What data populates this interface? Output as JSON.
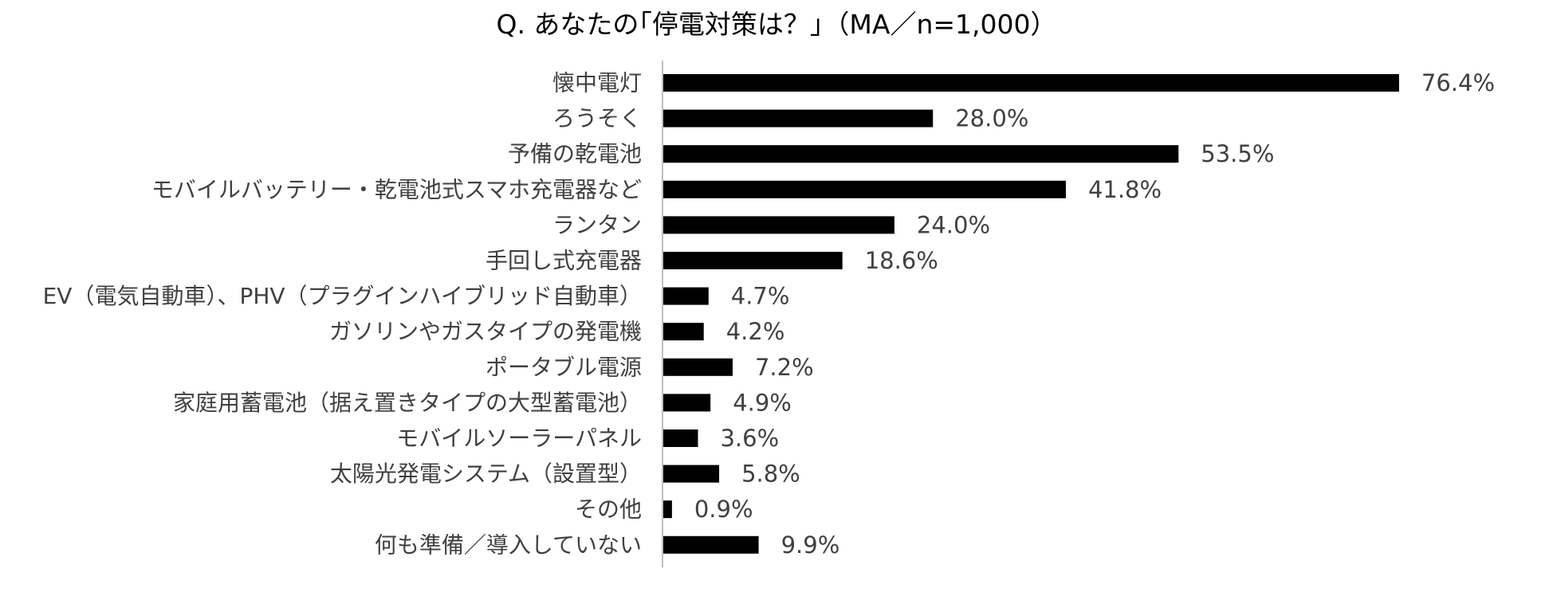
{
  "chart_data": {
    "type": "bar",
    "orientation": "horizontal",
    "title": "Q.  あなたの｢停電対策は？｣（MA／n=1,000）",
    "xlabel": "",
    "ylabel": "",
    "xlim": [
      0,
      100
    ],
    "grid": false,
    "legend": "none",
    "bar_color": "#000000",
    "axis_color": "#bfbfbf",
    "categories": [
      "懐中電灯",
      "ろうそく",
      "予備の乾電池",
      "モバイルバッテリー・乾電池式スマホ充電器など",
      "ランタン",
      "手回し式充電器",
      "EV（電気自動車）、PHV（プラグインハイブリッド自動車）",
      "ガソリンやガスタイプの発電機",
      "ポータブル電源",
      "家庭用蓄電池（据え置きタイプの大型蓄電池）",
      "モバイルソーラーパネル",
      "太陽光発電システム（設置型）",
      "その他",
      "何も準備／導入していない"
    ],
    "values": [
      76.4,
      28.0,
      53.5,
      41.8,
      24.0,
      18.6,
      4.7,
      4.2,
      7.2,
      4.9,
      3.6,
      5.8,
      0.9,
      9.9
    ],
    "value_labels": [
      "76.4%",
      "28.0%",
      "53.5%",
      "41.8%",
      "24.0%",
      "18.6%",
      "4.7%",
      "4.2%",
      "7.2%",
      "4.9%",
      "3.6%",
      "5.8%",
      "0.9%",
      "9.9%"
    ]
  }
}
